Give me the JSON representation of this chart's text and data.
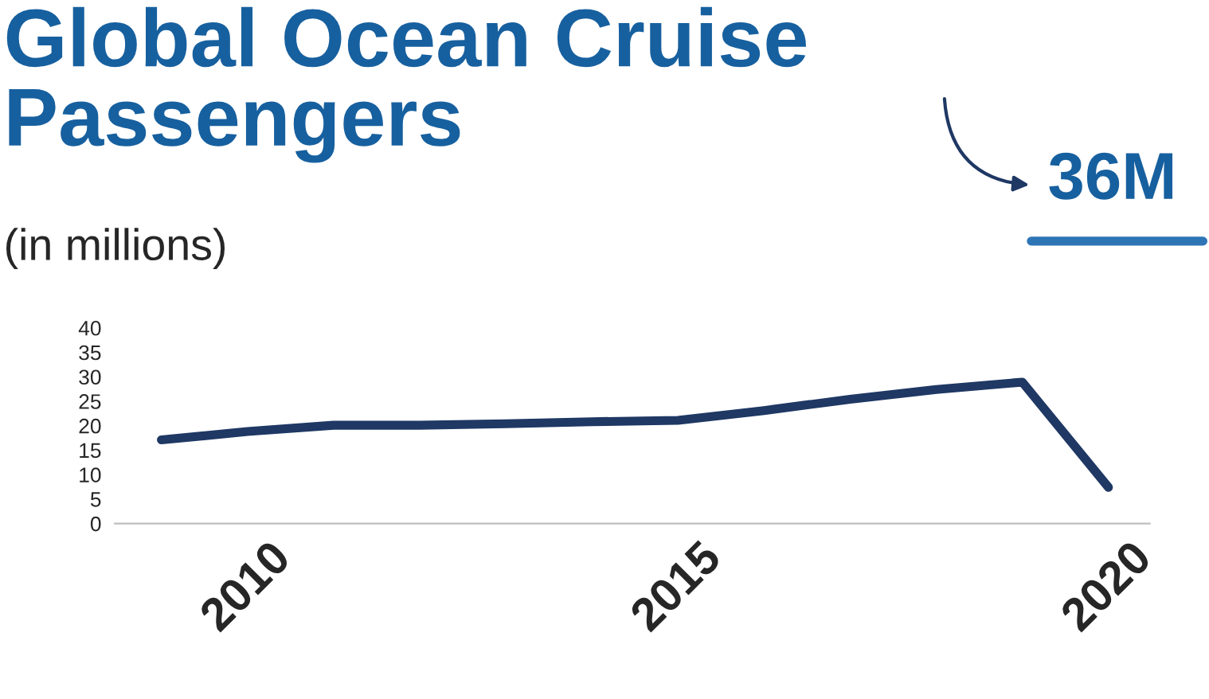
{
  "chart_data": {
    "type": "line",
    "title": "Global Ocean Cruise\nPassengers",
    "subtitle": "(in millions)",
    "annotations": [
      "36M"
    ],
    "x": [
      2009,
      2010,
      2011,
      2012,
      2013,
      2014,
      2015,
      2016,
      2017,
      2018,
      2019,
      2020
    ],
    "series": [
      {
        "color": "#1f3864",
        "values": [
          17.1,
          18.8,
          20.1,
          20.1,
          20.4,
          20.8,
          21.1,
          23.1,
          25.4,
          27.4,
          28.9,
          7.4
        ]
      }
    ],
    "xlim": [
      2008.46,
      2020.48
    ],
    "xticks": [
      2010,
      2015,
      2020
    ],
    "ylim": [
      0,
      40
    ],
    "yticks": [
      0,
      5,
      10,
      15,
      20,
      25,
      30,
      35,
      40
    ],
    "grid": false,
    "legend": false,
    "marker": "none",
    "line_style": "solid"
  }
}
